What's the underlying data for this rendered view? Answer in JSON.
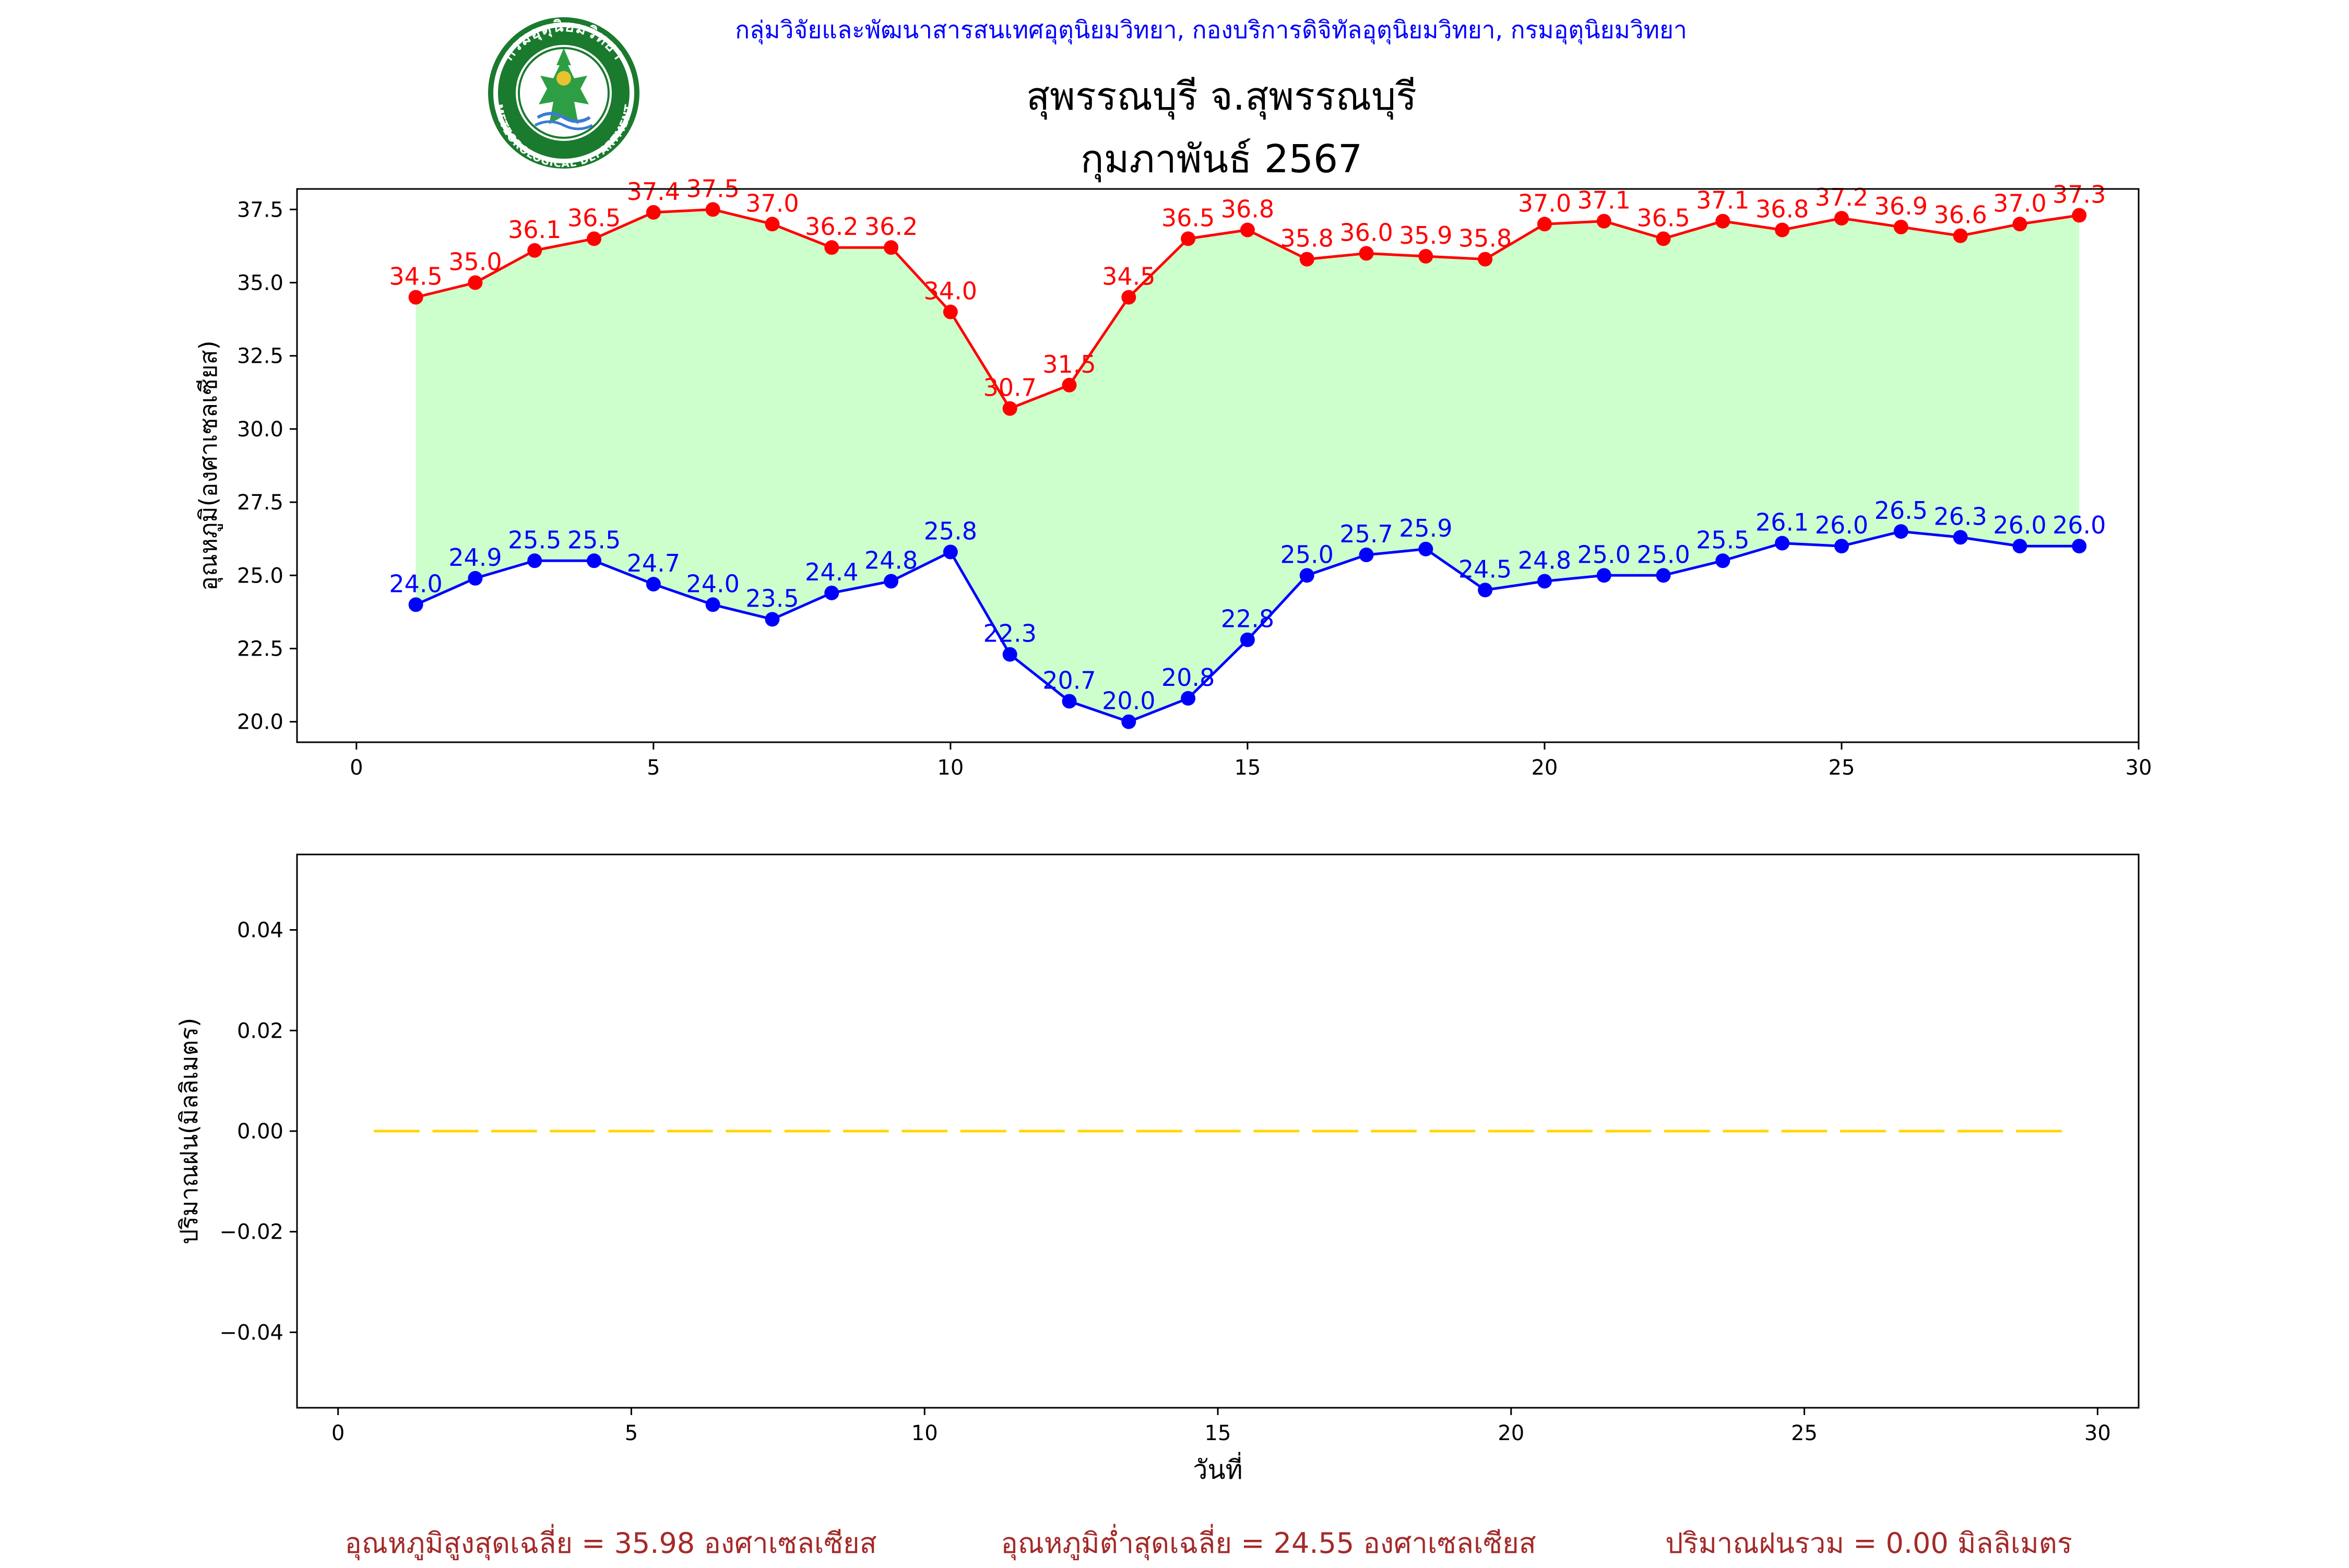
{
  "header": {
    "org_line": "กลุ่มวิจัยและพัฒนาสารสนเทศอุตุนิยมวิทยา, กองบริการดิจิทัลอุตุนิยมวิทยา, กรมอุตุนิยมวิทยา",
    "station": "สุพรรณบุรี จ.สุพรรณบุรี",
    "period": "กุมภาพันธ์ 2567",
    "logo_text_top": "กรมอุตุนิยมวิทยา",
    "logo_text_bottom": "METEOROLOGICAL DEPARTMENT"
  },
  "colors": {
    "header_text": "#0000ff",
    "max_series": "#ff0000",
    "min_series": "#0000ff",
    "fill": "#ccffcc",
    "rain": "#ffd700",
    "summary_text": "#a52a2a",
    "logo_green": "#1a7a2e"
  },
  "chart_data": [
    {
      "type": "line",
      "title": "",
      "xlabel": "",
      "ylabel": "อุณหภูมิ(องศาเซลเซียส)",
      "xlim": [
        -1,
        30
      ],
      "ylim": [
        19.3,
        38.2
      ],
      "xticks": [
        0,
        5,
        10,
        15,
        20,
        25,
        30
      ],
      "yticks": [
        20.0,
        22.5,
        25.0,
        27.5,
        30.0,
        32.5,
        35.0,
        37.5
      ],
      "ytick_labels": [
        "20.0",
        "22.5",
        "25.0",
        "27.5",
        "30.0",
        "32.5",
        "35.0",
        "37.5"
      ],
      "fill_between": true,
      "x": [
        1,
        2,
        3,
        4,
        5,
        6,
        7,
        8,
        9,
        10,
        11,
        12,
        13,
        14,
        15,
        16,
        17,
        18,
        19,
        20,
        21,
        22,
        23,
        24,
        25,
        26,
        27,
        28,
        29
      ],
      "series": [
        {
          "key": "max",
          "values": [
            34.5,
            35.0,
            36.1,
            36.5,
            37.4,
            37.5,
            37.0,
            36.2,
            36.2,
            34.0,
            30.7,
            31.5,
            34.5,
            36.5,
            36.8,
            35.8,
            36.0,
            35.9,
            35.8,
            37.0,
            37.1,
            36.5,
            37.1,
            36.8,
            37.2,
            36.9,
            36.6,
            37.0,
            37.3
          ]
        },
        {
          "key": "min",
          "values": [
            24.0,
            24.9,
            25.5,
            25.5,
            24.7,
            24.0,
            23.5,
            24.4,
            24.8,
            25.8,
            22.3,
            20.7,
            20.0,
            20.8,
            22.8,
            25.0,
            25.7,
            25.9,
            24.5,
            24.8,
            25.0,
            25.0,
            25.5,
            26.1,
            26.0,
            26.5,
            26.3,
            26.0,
            26.0
          ]
        }
      ]
    },
    {
      "type": "bar",
      "title": "",
      "xlabel": "วันที่",
      "ylabel": "ปริมาณฝน(มิลลิเมตร)",
      "xlim": [
        -0.7,
        30.7
      ],
      "ylim": [
        -0.055,
        0.055
      ],
      "xticks": [
        0,
        5,
        10,
        15,
        20,
        25,
        30
      ],
      "yticks": [
        -0.04,
        -0.02,
        0.0,
        0.02,
        0.04
      ],
      "ytick_labels": [
        "−0.04",
        "−0.02",
        "0.00",
        "0.02",
        "0.04"
      ],
      "x": [
        1,
        2,
        3,
        4,
        5,
        6,
        7,
        8,
        9,
        10,
        11,
        12,
        13,
        14,
        15,
        16,
        17,
        18,
        19,
        20,
        21,
        22,
        23,
        24,
        25,
        26,
        27,
        28,
        29
      ],
      "series": [
        {
          "key": "rain",
          "values": [
            0,
            0,
            0,
            0,
            0,
            0,
            0,
            0,
            0,
            0,
            0,
            0,
            0,
            0,
            0,
            0,
            0,
            0,
            0,
            0,
            0,
            0,
            0,
            0,
            0,
            0,
            0,
            0,
            0
          ]
        }
      ]
    }
  ],
  "summary": {
    "avg_max": "อุณหภูมิสูงสุดเฉลี่ย = 35.98 องศาเซลเซียส",
    "avg_min": "อุณหภูมิต่ำสุดเฉลี่ย = 24.55 องศาเซลเซียส",
    "total_rain": "ปริมาณฝนรวม = 0.00 มิลลิเมตร"
  }
}
